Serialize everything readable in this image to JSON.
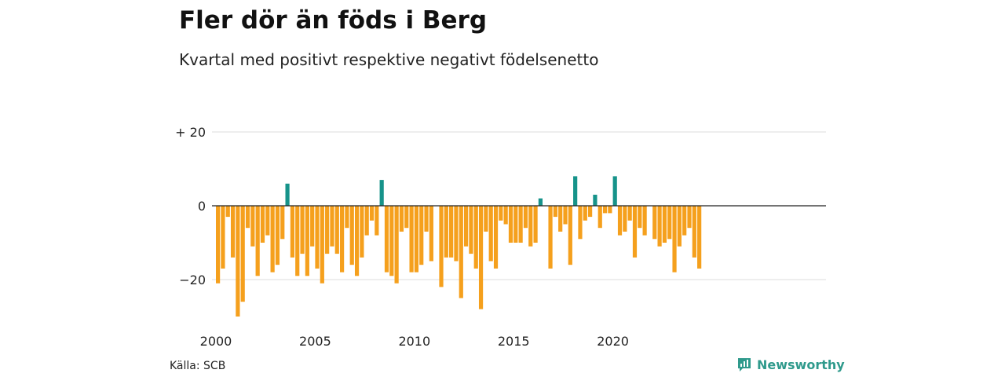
{
  "title": "Fler dör än föds i Berg",
  "subtitle": "Kvartal med positivt respektive negativt födelsenetto",
  "source": "Källa: SCB",
  "brand": {
    "name": "Newsworthy",
    "icon": "newsworthy-logo-icon"
  },
  "colors": {
    "negative": "#f5a01d",
    "positive": "#16938a",
    "grid": "#dddddd",
    "zero": "#222222"
  },
  "chart_data": {
    "type": "bar",
    "x_start": "2000-Q1",
    "tick_labels": {
      "y": [
        "+ 20",
        "0",
        "−20"
      ],
      "x": [
        "2000",
        "2005",
        "2010",
        "2015",
        "2020"
      ]
    },
    "y_ticks": [
      20,
      0,
      -20
    ],
    "x_ticks": [
      2000,
      2005,
      2010,
      2015,
      2020
    ],
    "ylim": [
      -32,
      22
    ],
    "grid": true,
    "values": [
      -21,
      -17,
      -3,
      -14,
      -30,
      -26,
      -6,
      -11,
      -19,
      -10,
      -8,
      -18,
      -16,
      -9,
      6,
      -14,
      -19,
      -13,
      -19,
      -11,
      -17,
      -21,
      -13,
      -11,
      -13,
      -18,
      -6,
      -16,
      -19,
      -14,
      -8,
      -4,
      -8,
      7,
      -18,
      -19,
      -21,
      -7,
      -6,
      -18,
      -18,
      -16,
      -7,
      -15,
      0,
      -22,
      -14,
      -14,
      -15,
      -25,
      -11,
      -13,
      -17,
      -28,
      -7,
      -15,
      -17,
      -4,
      -5,
      -10,
      -10,
      -10,
      -6,
      -11,
      -10,
      2,
      0,
      -17,
      -3,
      -7,
      -5,
      -16,
      8,
      -9,
      -4,
      -3,
      3,
      -6,
      -2,
      -2,
      8,
      -8,
      -7,
      -4,
      -14,
      -6,
      -8,
      0,
      -9,
      -11,
      -10,
      -9,
      -18,
      -11,
      -8,
      -6,
      -14,
      -17
    ]
  }
}
